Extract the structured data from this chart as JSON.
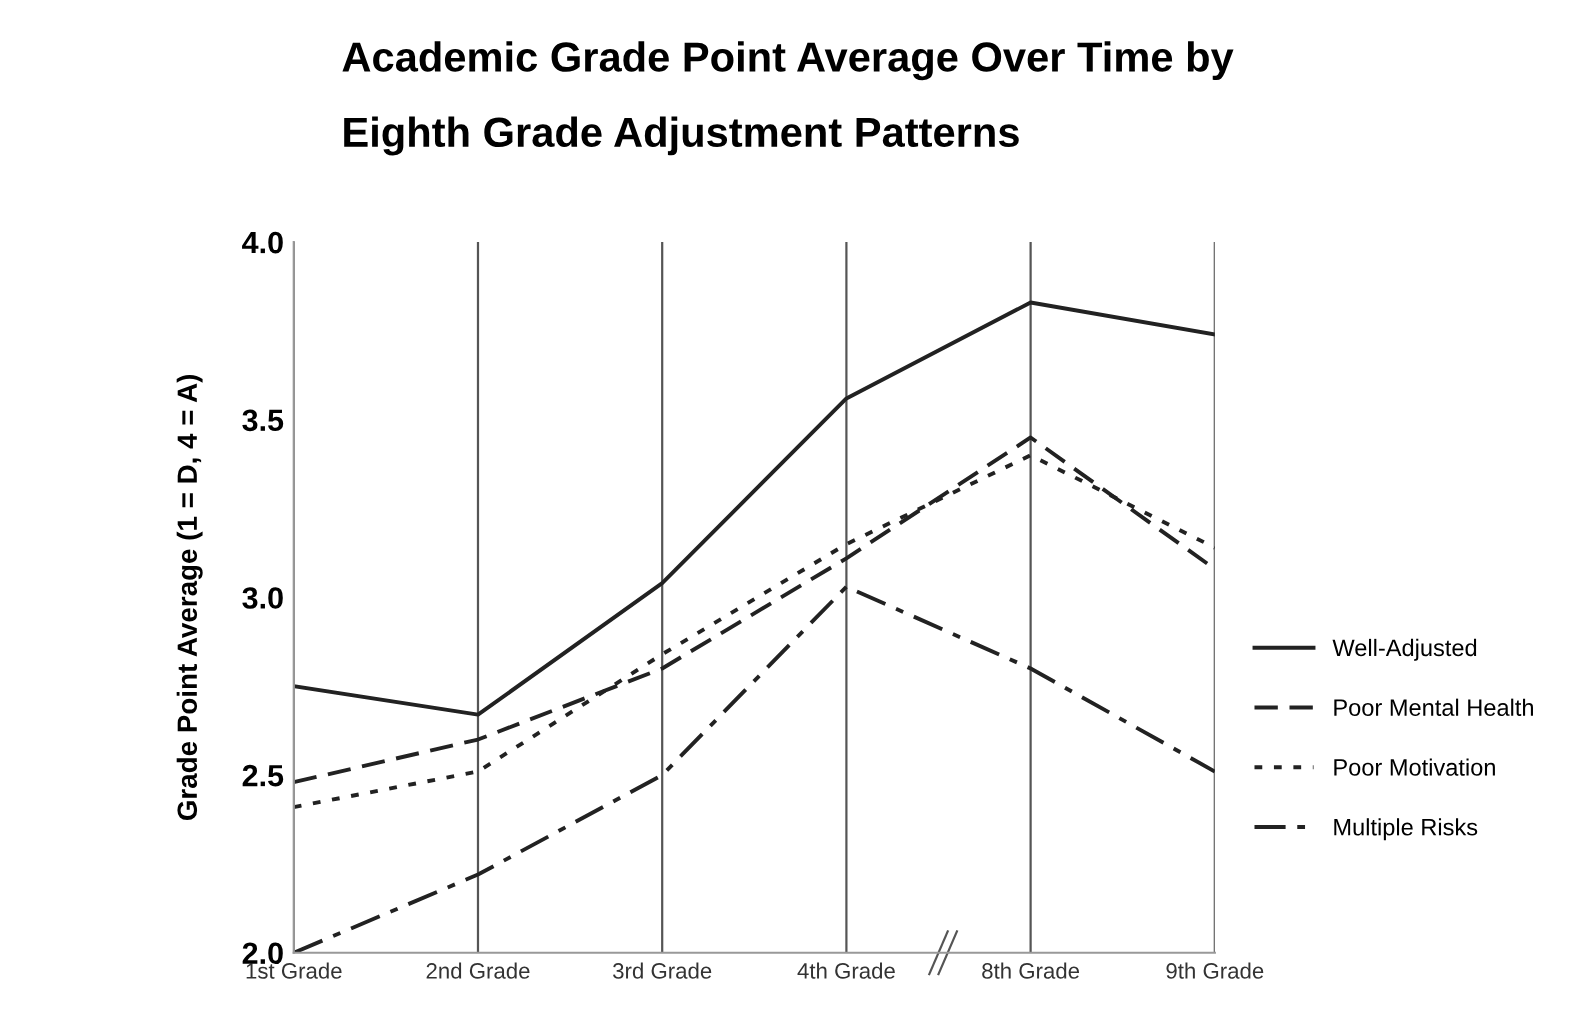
{
  "chart_data": {
    "type": "line",
    "title": "Academic Grade Point Average Over Time by\nEighth Grade Adjustment Patterns",
    "ylabel": "Grade Point Average (1 = D, 4 = A)",
    "categories": [
      "1st Grade",
      "2nd Grade",
      "3rd Grade",
      "4th Grade",
      "8th Grade",
      "9th Grade"
    ],
    "ylim": [
      2.0,
      4.0
    ],
    "yticks": [
      {
        "value": 2.0,
        "label": "2.0"
      },
      {
        "value": 2.5,
        "label": "2.5"
      },
      {
        "value": 3.0,
        "label": "3.0"
      },
      {
        "value": 3.5,
        "label": "3.5"
      },
      {
        "value": 4.0,
        "label": "4.0"
      }
    ],
    "grid": "x",
    "legend": "right",
    "marker": "none",
    "series": [
      {
        "name": "Well-Adjusted",
        "color": "#222222",
        "line_style": "solid",
        "values": [
          2.75,
          2.67,
          3.04,
          3.56,
          3.83,
          3.74
        ]
      },
      {
        "name": "Poor Mental Health",
        "color": "#222222",
        "line_style": "dashed",
        "values": [
          2.48,
          2.6,
          2.8,
          3.11,
          3.45,
          3.08
        ]
      },
      {
        "name": "Poor Motivation",
        "color": "#222222",
        "line_style": "dotted",
        "values": [
          2.41,
          2.51,
          2.84,
          3.15,
          3.4,
          3.14
        ]
      },
      {
        "name": "Multiple Risks",
        "color": "#222222",
        "line_style": "dashdot",
        "values": [
          2.0,
          2.22,
          2.5,
          3.03,
          2.8,
          2.51
        ]
      }
    ]
  }
}
